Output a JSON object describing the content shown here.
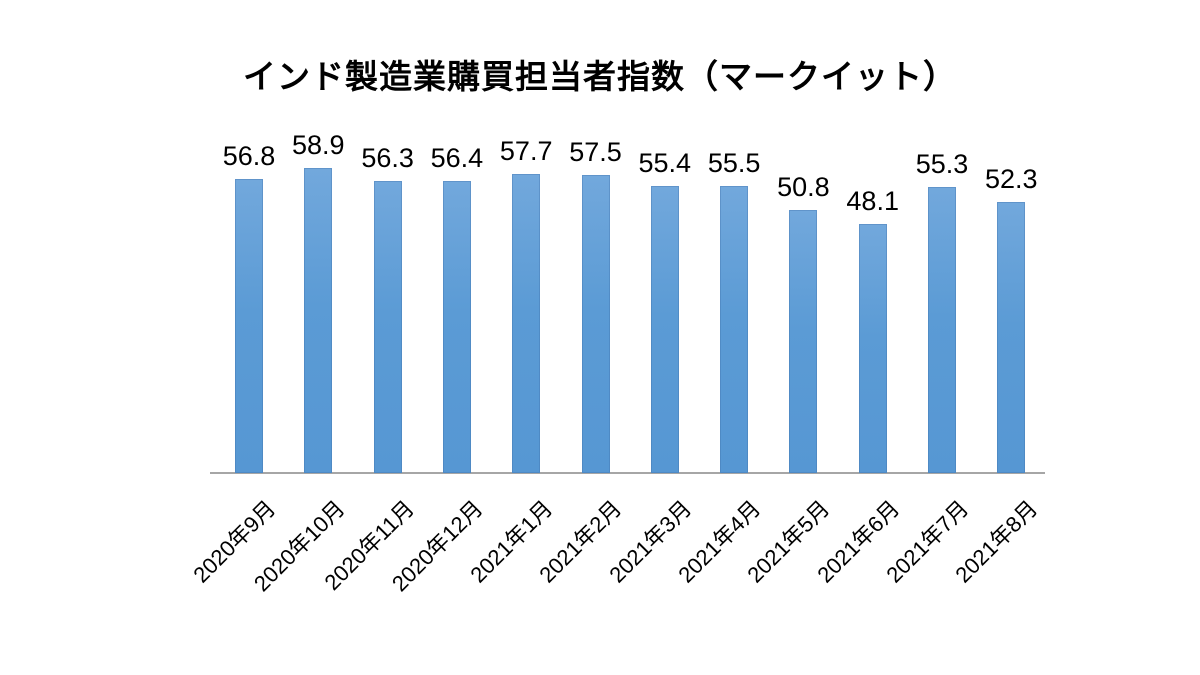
{
  "title": "インド製造業購買担当者指数（マークイット）",
  "chart_data": {
    "type": "bar",
    "title": "インド製造業購買担当者指数（マークイット）",
    "categories": [
      "2020年9月",
      "2020年10月",
      "2020年11月",
      "2020年12月",
      "2021年1月",
      "2021年2月",
      "2021年3月",
      "2021年4月",
      "2021年5月",
      "2021年6月",
      "2021年7月",
      "2021年8月"
    ],
    "values": [
      56.8,
      58.9,
      56.3,
      56.4,
      57.7,
      57.5,
      55.4,
      55.5,
      50.8,
      48.1,
      55.3,
      52.3
    ],
    "xlabel": "",
    "ylabel": "",
    "ylim": [
      0,
      60
    ],
    "grid": false,
    "legend": false,
    "y_axis_visible": false,
    "data_labels": true,
    "x_label_rotation_deg": -45,
    "bar_color": "#5b9bd5",
    "axis_line_color": "#a6a6a6",
    "text_color": "#000000",
    "background": "#ffffff"
  }
}
